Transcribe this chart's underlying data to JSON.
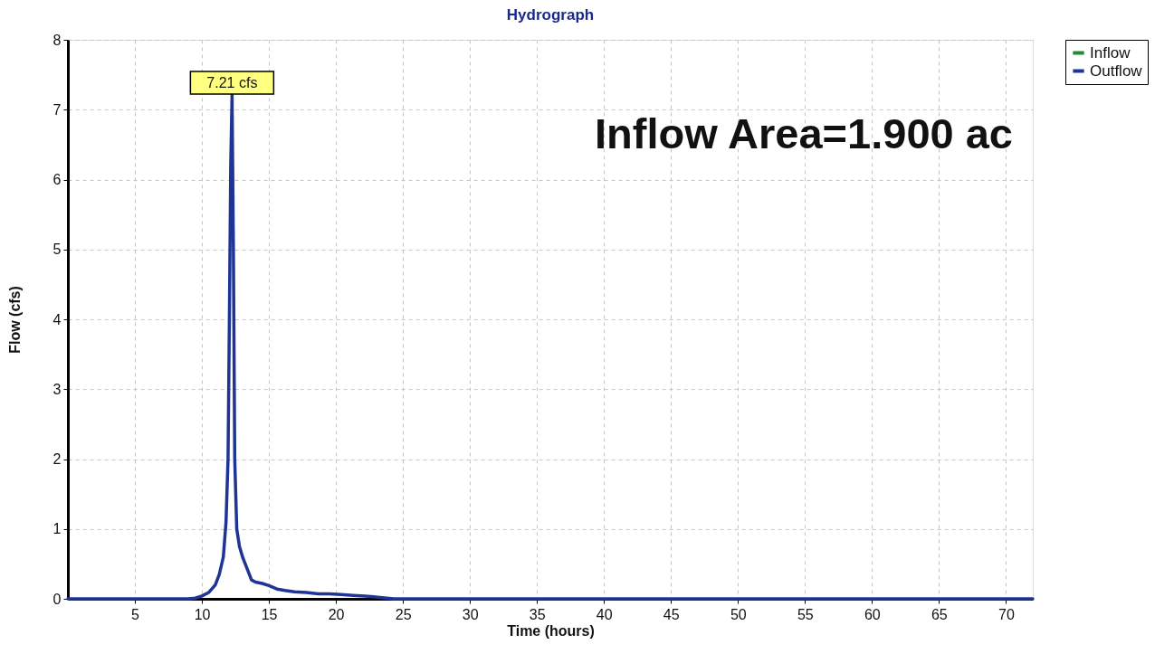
{
  "chart_data": {
    "type": "line",
    "title": "Hydrograph",
    "xlabel": "Time (hours)",
    "ylabel": "Flow (cfs)",
    "x": [
      0,
      9.0,
      9.5,
      10.0,
      10.5,
      11.0,
      11.3,
      11.6,
      11.8,
      11.95,
      12.05,
      12.15,
      12.25,
      12.35,
      12.45,
      12.6,
      12.8,
      13.05,
      13.4,
      13.7,
      14.0,
      14.5,
      15.0,
      15.6,
      16.2,
      16.9,
      17.8,
      18.7,
      19.5,
      20.4,
      21.3,
      22.2,
      22.8,
      23.3,
      23.8,
      24.3,
      72
    ],
    "series": [
      {
        "name": "Inflow",
        "color": "#1e8c2e",
        "values": [
          null,
          null,
          null,
          null,
          null,
          null,
          null,
          null,
          null,
          null,
          null,
          null,
          null,
          null,
          null,
          null,
          null,
          null,
          null,
          null,
          null,
          null,
          null,
          null,
          null,
          null,
          null,
          null,
          null,
          null,
          null,
          null,
          null,
          null,
          null,
          null,
          null
        ]
      },
      {
        "name": "Outflow",
        "color": "#1f3494",
        "values": [
          0,
          0,
          0.01,
          0.04,
          0.09,
          0.2,
          0.35,
          0.6,
          1.1,
          2.0,
          4.0,
          6.2,
          7.21,
          5.0,
          2.0,
          1.0,
          0.75,
          0.59,
          0.42,
          0.27,
          0.24,
          0.22,
          0.19,
          0.14,
          0.12,
          0.1,
          0.09,
          0.07,
          0.07,
          0.06,
          0.05,
          0.04,
          0.03,
          0.02,
          0.01,
          0,
          0
        ]
      }
    ],
    "xlim": [
      0,
      72
    ],
    "ylim": [
      0,
      8
    ],
    "xticks": [
      5,
      10,
      15,
      20,
      25,
      30,
      35,
      40,
      45,
      50,
      55,
      60,
      65,
      70
    ],
    "yticks": [
      0,
      1,
      2,
      3,
      4,
      5,
      6,
      7,
      8
    ],
    "annotations": [
      "Inflow Area=1.900 ac",
      {
        "text": "7.21 cfs",
        "x": 12.25,
        "y": 7.21
      }
    ],
    "grid": true,
    "legend": "top right"
  }
}
